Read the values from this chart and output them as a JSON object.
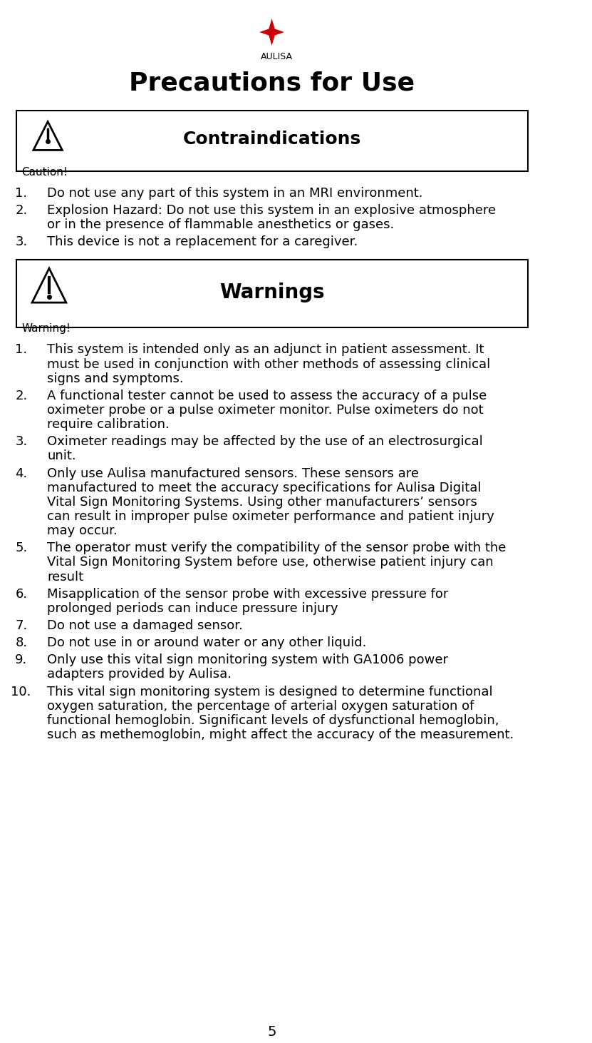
{
  "title": "Precautions for Use",
  "title_fontsize": 26,
  "page_number": "5",
  "background_color": "#ffffff",
  "text_color": "#000000",
  "caution_header": "Contraindications",
  "caution_label": "Caution!",
  "warning_header": "Warnings",
  "warning_label": "Warning!",
  "caution_items": [
    "Do not use any part of this system in an MRI environment.",
    "Explosion Hazard: Do not use this system in an explosive atmosphere\nor in the presence of flammable anesthetics or gases.",
    "This device is not a replacement for a caregiver."
  ],
  "warning_items": [
    "This system is intended only as an adjunct in patient assessment. It\nmust be used in conjunction with other methods of assessing clinical\nsigns and symptoms.",
    "A functional tester cannot be used to assess the accuracy of a pulse\noximeter probe or a pulse oximeter monitor. Pulse oximeters do not\nrequire calibration.",
    "Oximeter readings may be affected by the use of an electrosurgical\nunit.",
    "Only use Aulisa manufactured sensors. These sensors are\nmanufactured to meet the accuracy specifications for Aulisa Digital\nVital Sign Monitoring Systems. Using other manufacturers’ sensors\ncan result in improper pulse oximeter performance and patient injury\nmay occur.",
    "The operator must verify the compatibility of the sensor probe with the\nVital Sign Monitoring System before use, otherwise patient injury can\nresult",
    "Misapplication of the sensor probe with excessive pressure for\nprolonged periods can induce pressure injury",
    "Do not use a damaged sensor.",
    "Do not use in or around water or any other liquid.",
    "Only use this vital sign monitoring system with GA1006 power\nadapters provided by Aulisa.",
    "This vital sign monitoring system is designed to determine functional\noxygen saturation, the percentage of arterial oxygen saturation of\nfunctional hemoglobin. Significant levels of dysfunctional hemoglobin,\nsuch as methemoglobin, might affect the accuracy of the measurement."
  ],
  "body_fontsize": 13,
  "header_fontsize": 18,
  "label_fontsize": 11
}
